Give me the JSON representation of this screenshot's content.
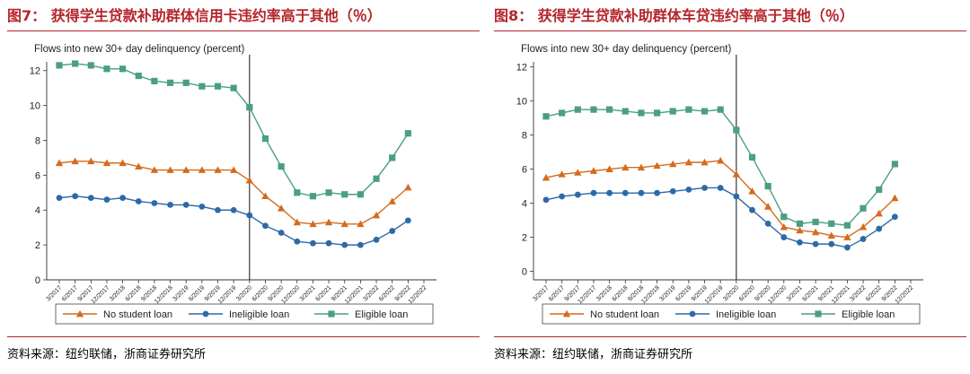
{
  "figures": [
    {
      "title": "图7： 获得学生贷款补助群体信用卡违约率高于其他（％）",
      "source": "资料来源：纽约联储，浙商证券研究所"
    },
    {
      "title": "图8： 获得学生贷款补助群体车贷违约率高于其他（％）",
      "source": "资料来源：纽约联储，浙商证券研究所"
    }
  ],
  "chart_data": [
    {
      "type": "line",
      "title": "Flows into new 30+ day delinquency (percent)",
      "x": [
        "3/2017",
        "6/2017",
        "9/2017",
        "12/2017",
        "3/2018",
        "6/2018",
        "9/2018",
        "12/2018",
        "3/2019",
        "6/2019",
        "9/2019",
        "12/2019",
        "3/2020",
        "6/2020",
        "9/2020",
        "12/2020",
        "3/2021",
        "6/2021",
        "9/2021",
        "12/2021",
        "3/2022",
        "6/2022",
        "9/2022",
        "12/2022"
      ],
      "ylim": [
        0,
        12.5
      ],
      "yticks": [
        0,
        2,
        4,
        6,
        8,
        10,
        12
      ],
      "vline": "3/2020",
      "legend_position": "bottom",
      "grid": false,
      "series": [
        {
          "name": "No student loan",
          "color": "#d46b1f",
          "marker": "triangle",
          "values": [
            6.7,
            6.8,
            6.8,
            6.7,
            6.7,
            6.5,
            6.3,
            6.3,
            6.3,
            6.3,
            6.3,
            6.3,
            5.7,
            4.8,
            4.1,
            3.3,
            3.2,
            3.3,
            3.2,
            3.2,
            3.7,
            4.5,
            5.3,
            null
          ]
        },
        {
          "name": "Ineligible loan",
          "color": "#2c6aa6",
          "marker": "circle",
          "values": [
            4.7,
            4.8,
            4.7,
            4.6,
            4.7,
            4.5,
            4.4,
            4.3,
            4.3,
            4.2,
            4.0,
            4.0,
            3.7,
            3.1,
            2.7,
            2.2,
            2.1,
            2.1,
            2.0,
            2.0,
            2.3,
            2.8,
            3.4,
            null
          ]
        },
        {
          "name": "Eligible loan",
          "color": "#4a9e86",
          "marker": "square",
          "values": [
            12.3,
            12.4,
            12.3,
            12.1,
            12.1,
            11.7,
            11.4,
            11.3,
            11.3,
            11.1,
            11.1,
            11.0,
            9.9,
            8.1,
            6.5,
            5.0,
            4.8,
            5.0,
            4.9,
            4.9,
            5.8,
            7.0,
            8.4,
            null
          ]
        }
      ]
    },
    {
      "type": "line",
      "title": "Flows into new 30+ day delinquency (percent)",
      "x": [
        "3/2017",
        "6/2017",
        "9/2017",
        "12/2017",
        "3/2018",
        "6/2018",
        "9/2018",
        "12/2018",
        "3/2019",
        "6/2019",
        "9/2019",
        "12/2019",
        "3/2020",
        "6/2020",
        "9/2020",
        "12/2020",
        "3/2021",
        "6/2021",
        "9/2021",
        "12/2021",
        "3/2022",
        "6/2022",
        "9/2022",
        "12/2022"
      ],
      "ylim": [
        -0.5,
        12.3
      ],
      "yticks": [
        0,
        2,
        4,
        6,
        8,
        10,
        12
      ],
      "vline": "3/2020",
      "legend_position": "bottom",
      "grid": false,
      "series": [
        {
          "name": "No student loan",
          "color": "#d46b1f",
          "marker": "triangle",
          "values": [
            5.5,
            5.7,
            5.8,
            5.9,
            6.0,
            6.1,
            6.1,
            6.2,
            6.3,
            6.4,
            6.4,
            6.5,
            5.7,
            4.7,
            3.8,
            2.6,
            2.4,
            2.3,
            2.1,
            2.0,
            2.6,
            3.4,
            4.3,
            null
          ]
        },
        {
          "name": "Ineligible loan",
          "color": "#2c6aa6",
          "marker": "circle",
          "values": [
            4.2,
            4.4,
            4.5,
            4.6,
            4.6,
            4.6,
            4.6,
            4.6,
            4.7,
            4.8,
            4.9,
            4.9,
            4.4,
            3.6,
            2.8,
            2.0,
            1.7,
            1.6,
            1.6,
            1.4,
            1.9,
            2.5,
            3.2,
            null
          ]
        },
        {
          "name": "Eligible loan",
          "color": "#4a9e86",
          "marker": "square",
          "values": [
            9.1,
            9.3,
            9.5,
            9.5,
            9.5,
            9.4,
            9.3,
            9.3,
            9.4,
            9.5,
            9.4,
            9.5,
            8.3,
            6.7,
            5.0,
            3.2,
            2.8,
            2.9,
            2.8,
            2.7,
            3.7,
            4.8,
            6.3,
            null
          ]
        }
      ]
    }
  ]
}
